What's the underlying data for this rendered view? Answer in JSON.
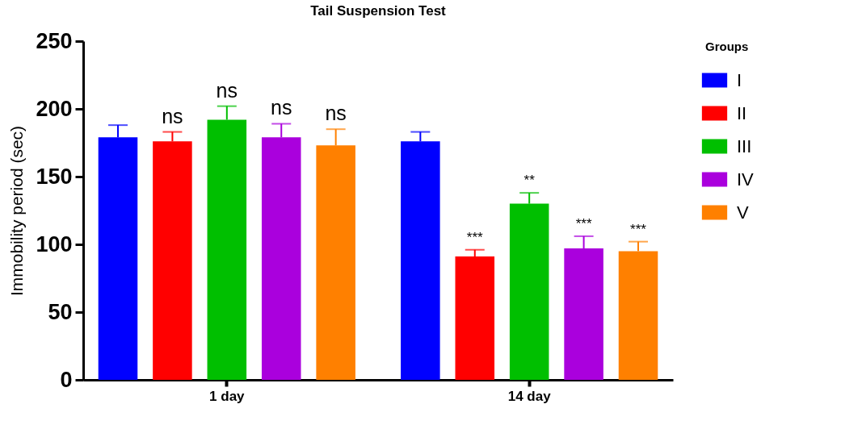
{
  "chart_data": {
    "type": "bar",
    "title": "Tail Suspension Test",
    "ylabel": "Immobility period (sec)",
    "legend_title": "Groups",
    "categories": [
      "1 day",
      "14 day"
    ],
    "series": [
      {
        "name": "I",
        "color": "#0000ff",
        "values": [
          179,
          176
        ],
        "errors": [
          9,
          7
        ],
        "value_labels": [
          null,
          null
        ]
      },
      {
        "name": "II",
        "color": "#ff0000",
        "values": [
          176,
          91
        ],
        "errors": [
          7,
          5
        ],
        "value_labels": [
          "ns",
          "***"
        ]
      },
      {
        "name": "III",
        "color": "#00bf00",
        "values": [
          192,
          130
        ],
        "errors": [
          10,
          8
        ],
        "value_labels": [
          "ns",
          "**"
        ]
      },
      {
        "name": "IV",
        "color": "#aa00dd",
        "values": [
          179,
          97
        ],
        "errors": [
          10,
          9
        ],
        "value_labels": [
          "ns",
          "***"
        ]
      },
      {
        "name": "V",
        "color": "#ff8000",
        "values": [
          173,
          95
        ],
        "errors": [
          12,
          7
        ],
        "value_labels": [
          "ns",
          "***"
        ]
      }
    ],
    "ylim": [
      0,
      250
    ],
    "yticks": [
      0,
      50,
      100,
      150,
      200,
      250
    ],
    "grid": false,
    "legend": "right"
  }
}
